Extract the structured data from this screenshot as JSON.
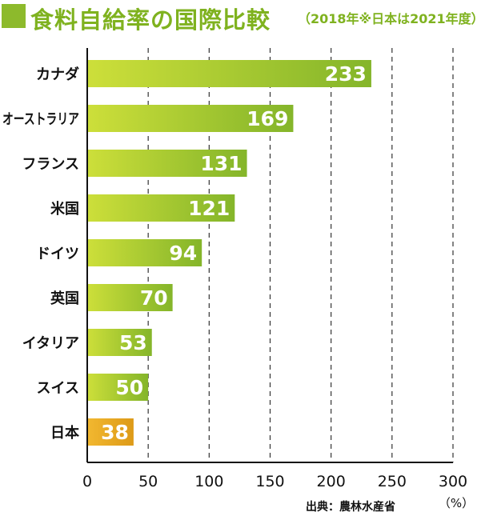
{
  "header": {
    "title": "食料自給率の国際比較",
    "subtitle": "（2018年※日本は2021年度）"
  },
  "chart_data": {
    "type": "bar",
    "orientation": "horizontal",
    "categories": [
      "カナダ",
      "オーストラリア",
      "フランス",
      "米国",
      "ドイツ",
      "英国",
      "イタリア",
      "スイス",
      "日本"
    ],
    "values": [
      233,
      169,
      131,
      121,
      94,
      70,
      53,
      50,
      38
    ],
    "value_labels": [
      "233",
      "169",
      "131",
      "121",
      "94",
      "70",
      "53",
      "50",
      "38"
    ],
    "highlight_category": "日本",
    "xlim": [
      0,
      300
    ],
    "xticks": [
      "0",
      "50",
      "100",
      "150",
      "200",
      "250",
      "300"
    ],
    "xtick_values": [
      0,
      50,
      100,
      150,
      200,
      250,
      300
    ],
    "unit": "（%）",
    "grid": "vertical-dashed",
    "colors": {
      "bar": "#8dba2c",
      "bar_light": "#c9dd3a",
      "highlight": "#e0a019",
      "highlight_light": "#f2b52a",
      "title": "#7fb21f"
    }
  },
  "footer": {
    "source": "出典：農林水産省"
  }
}
